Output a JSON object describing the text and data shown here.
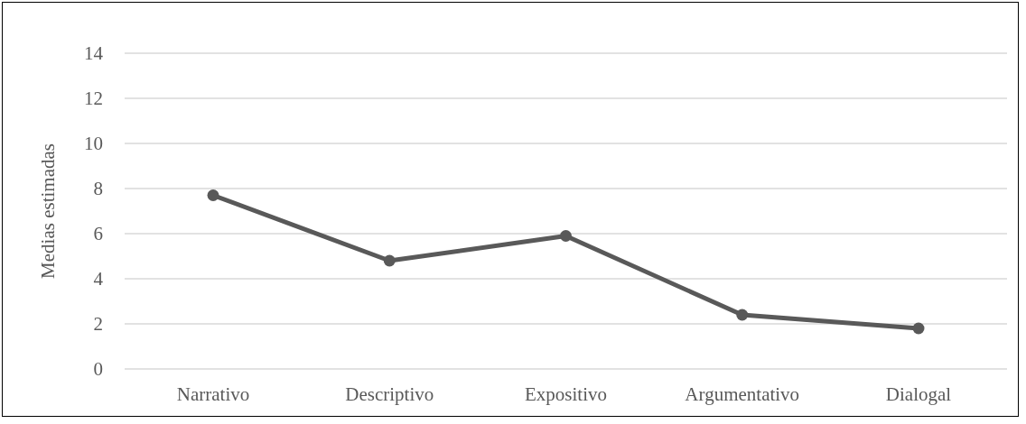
{
  "chart_data": {
    "type": "line",
    "ylabel": "Medias estimadas",
    "categories": [
      "Narrativo",
      "Descriptivo",
      "Expositivo",
      "Argumentativo",
      "Dialogal"
    ],
    "series": [
      {
        "color": "#595959",
        "values": [
          7.7,
          4.8,
          5.9,
          2.4,
          1.8
        ]
      }
    ],
    "ylim": [
      0,
      14
    ],
    "yticks": [
      0,
      2,
      4,
      6,
      8,
      10,
      12,
      14
    ],
    "grid": "y",
    "marker": "circle",
    "line_style": "solid"
  }
}
